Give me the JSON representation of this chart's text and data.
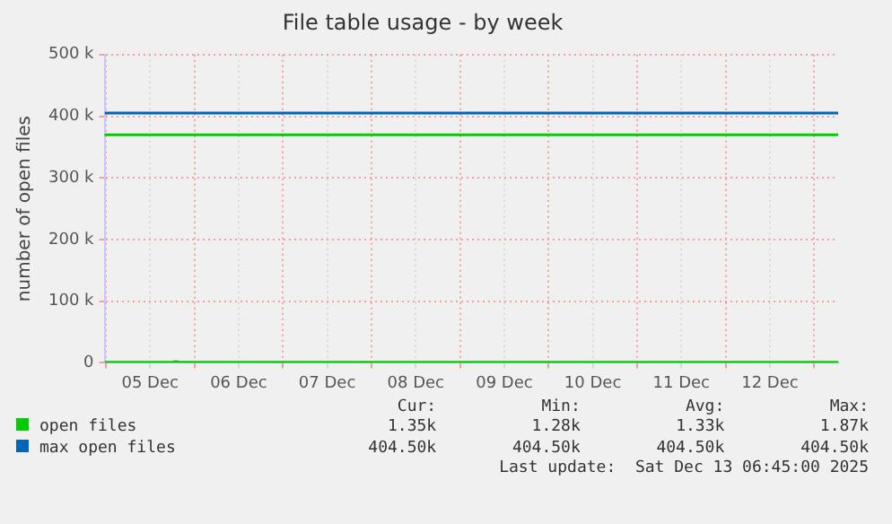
{
  "chart_data": {
    "type": "line",
    "title": "File table usage - by week",
    "ylabel": "number of open files",
    "x": [
      "2025-12-04T23:40",
      "2025-12-05T12:00",
      "2025-12-05T18:00",
      "2025-12-05T19:00",
      "2025-12-05T20:00",
      "2025-12-07T00:00",
      "2025-12-09T00:00",
      "2025-12-11T00:00",
      "2025-12-13T06:30"
    ],
    "series": [
      {
        "name": "open files",
        "color": "#00cc00",
        "values": [
          1000,
          1000,
          1000,
          2000,
          1000,
          1000,
          1000,
          1000,
          1000
        ]
      },
      {
        "name": "max open files",
        "color": "#0066b3",
        "values": [
          405000,
          405000,
          405000,
          405000,
          405000,
          405000,
          405000,
          405000,
          405000
        ]
      }
    ],
    "xlim": [
      "2025-12-04T23:40",
      "2025-12-13T06:30"
    ],
    "xticks": [
      {
        "value": "2025-12-05T00:00",
        "label": null
      },
      {
        "value": "2025-12-05T12:00",
        "label": "05 Dec"
      },
      {
        "value": "2025-12-06T00:00",
        "label": null
      },
      {
        "value": "2025-12-06T12:00",
        "label": "06 Dec"
      },
      {
        "value": "2025-12-07T00:00",
        "label": null
      },
      {
        "value": "2025-12-07T12:00",
        "label": "07 Dec"
      },
      {
        "value": "2025-12-08T00:00",
        "label": null
      },
      {
        "value": "2025-12-08T12:00",
        "label": "08 Dec"
      },
      {
        "value": "2025-12-09T00:00",
        "label": null
      },
      {
        "value": "2025-12-09T12:00",
        "label": "09 Dec"
      },
      {
        "value": "2025-12-10T00:00",
        "label": null
      },
      {
        "value": "2025-12-10T12:00",
        "label": "10 Dec"
      },
      {
        "value": "2025-12-11T00:00",
        "label": null
      },
      {
        "value": "2025-12-11T12:00",
        "label": "11 Dec"
      },
      {
        "value": "2025-12-12T00:00",
        "label": null
      },
      {
        "value": "2025-12-12T12:00",
        "label": "12 Dec"
      },
      {
        "value": "2025-12-13T00:00",
        "label": null
      }
    ],
    "ylim": [
      0,
      500000
    ],
    "yticks": [
      {
        "value": 0,
        "label": "0"
      },
      {
        "value": 100000,
        "label": "100 k"
      },
      {
        "value": 200000,
        "label": "200 k"
      },
      {
        "value": 300000,
        "label": "300 k"
      },
      {
        "value": 400000,
        "label": "400 k"
      },
      {
        "value": 500000,
        "label": "500 k"
      }
    ],
    "ref_lines": [
      {
        "axis": "y",
        "value": 370000,
        "color": "#00cc00"
      }
    ],
    "grid": true,
    "legend": "bottom left",
    "marker": "none",
    "line_style": "solid",
    "annotations": [
      "Cur:",
      "Min:",
      "Avg:",
      "Max:",
      "1.35k",
      "1.28k",
      "1.33k",
      "1.87k",
      "404.50k",
      "404.50k",
      "404.50k",
      "404.50k",
      "Last update:  Sat Dec 13 06:45:00 2025"
    ]
  }
}
